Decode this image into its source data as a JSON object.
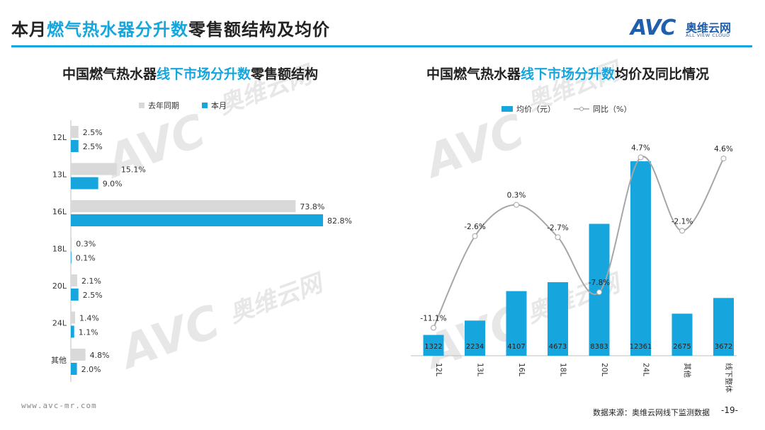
{
  "header": {
    "title_pre": "本月",
    "title_hl": "燃气热水器分升数",
    "title_post": "零售额结构及均价",
    "logo_mark": "AVC",
    "logo_cn": "奥维云网",
    "logo_en": "ALL VIEW CLOUD"
  },
  "left_chart": {
    "title_pre": "中国燃气热水器",
    "title_hl": "线下市场分升数",
    "title_post": "零售额结构"
  },
  "right_chart": {
    "title_pre": "中国燃气热水器",
    "title_hl": "线下市场分升数",
    "title_post": "均价及同比情况"
  },
  "watermark": {
    "mark": "AVC",
    "cn": "奥维云网",
    "en": "ALL VIEW CLOUD"
  },
  "footer": {
    "url": "www.avc-mr.com",
    "source": "数据来源：奥维云网线下监测数据",
    "page": "-19-"
  },
  "chart_data": [
    {
      "type": "bar",
      "orientation": "horizontal",
      "categories": [
        "12L",
        "13L",
        "16L",
        "18L",
        "20L",
        "24L",
        "其他"
      ],
      "series": [
        {
          "name": "去年同期",
          "color": "#d9d9d9",
          "values": [
            2.5,
            15.1,
            73.8,
            0.3,
            2.1,
            1.4,
            4.8
          ],
          "labels": [
            "2.5%",
            "15.1%",
            "73.8%",
            "0.3%",
            "2.1%",
            "1.4%",
            "4.8%"
          ]
        },
        {
          "name": "本月",
          "color": "#16a6dd",
          "values": [
            2.5,
            9.0,
            82.8,
            0.1,
            2.5,
            1.1,
            2.0
          ],
          "labels": [
            "2.5%",
            "9.0%",
            "82.8%",
            "0.1%",
            "2.5%",
            "1.1%",
            "2.0%"
          ]
        }
      ],
      "unit": "%",
      "grid": false,
      "legend_position": "top"
    },
    {
      "type": "bar",
      "categories": [
        "12L",
        "13L",
        "16L",
        "18L",
        "20L",
        "24L",
        "其他",
        "线下整体"
      ],
      "bar_series": {
        "name": "均价（元）",
        "color": "#16a6dd",
        "values": [
          1322,
          2234,
          4107,
          4673,
          8383,
          12361,
          2675,
          3672
        ]
      },
      "line_series": {
        "name": "同比（%）",
        "color": "#a6a6a6",
        "values": [
          -11.1,
          -2.6,
          0.3,
          -2.7,
          -7.8,
          4.7,
          -2.1,
          4.6
        ],
        "labels": [
          "-11.1%",
          "-2.6%",
          "0.3%",
          "-2.7%",
          "-7.8%",
          "4.7%",
          "-2.1%",
          "4.6%"
        ]
      },
      "grid": false,
      "legend_position": "top"
    }
  ]
}
